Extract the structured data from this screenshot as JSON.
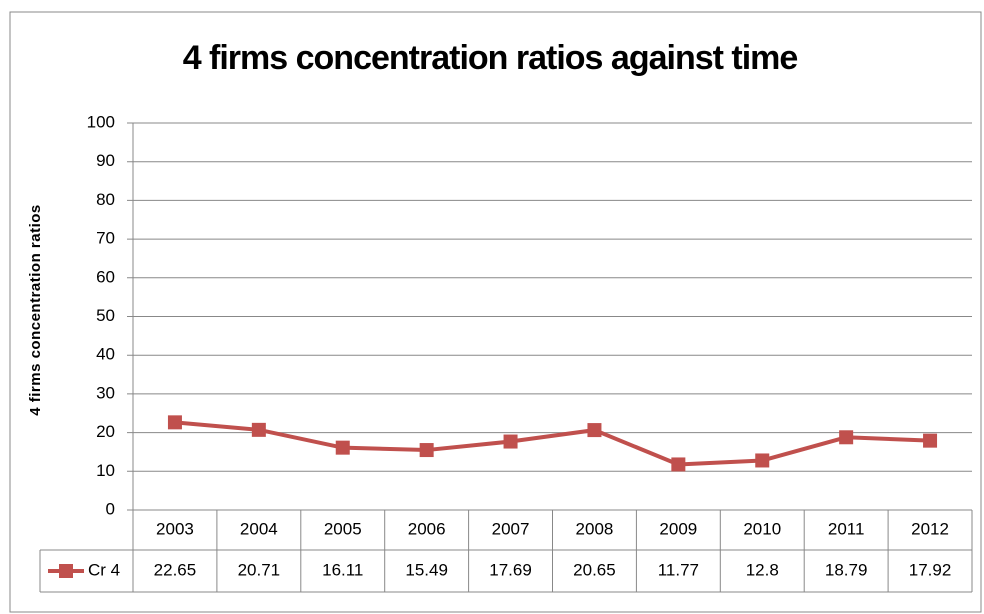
{
  "chart_data": {
    "type": "line",
    "title": "4 firms concentration ratios against time",
    "y_label": "4 firms concentration ratios",
    "categories": [
      "2003",
      "2004",
      "2005",
      "2006",
      "2007",
      "2008",
      "2009",
      "2010",
      "2011",
      "2012"
    ],
    "series": [
      {
        "name": "Cr 4",
        "color": "#c0504d",
        "values": [
          22.65,
          20.71,
          16.11,
          15.49,
          17.69,
          20.65,
          11.77,
          12.8,
          18.79,
          17.92
        ]
      }
    ],
    "ylim": [
      0,
      100
    ],
    "yticks": [
      0,
      10,
      20,
      30,
      40,
      50,
      60,
      70,
      80,
      90,
      100
    ],
    "grid": true,
    "data_table": true
  }
}
